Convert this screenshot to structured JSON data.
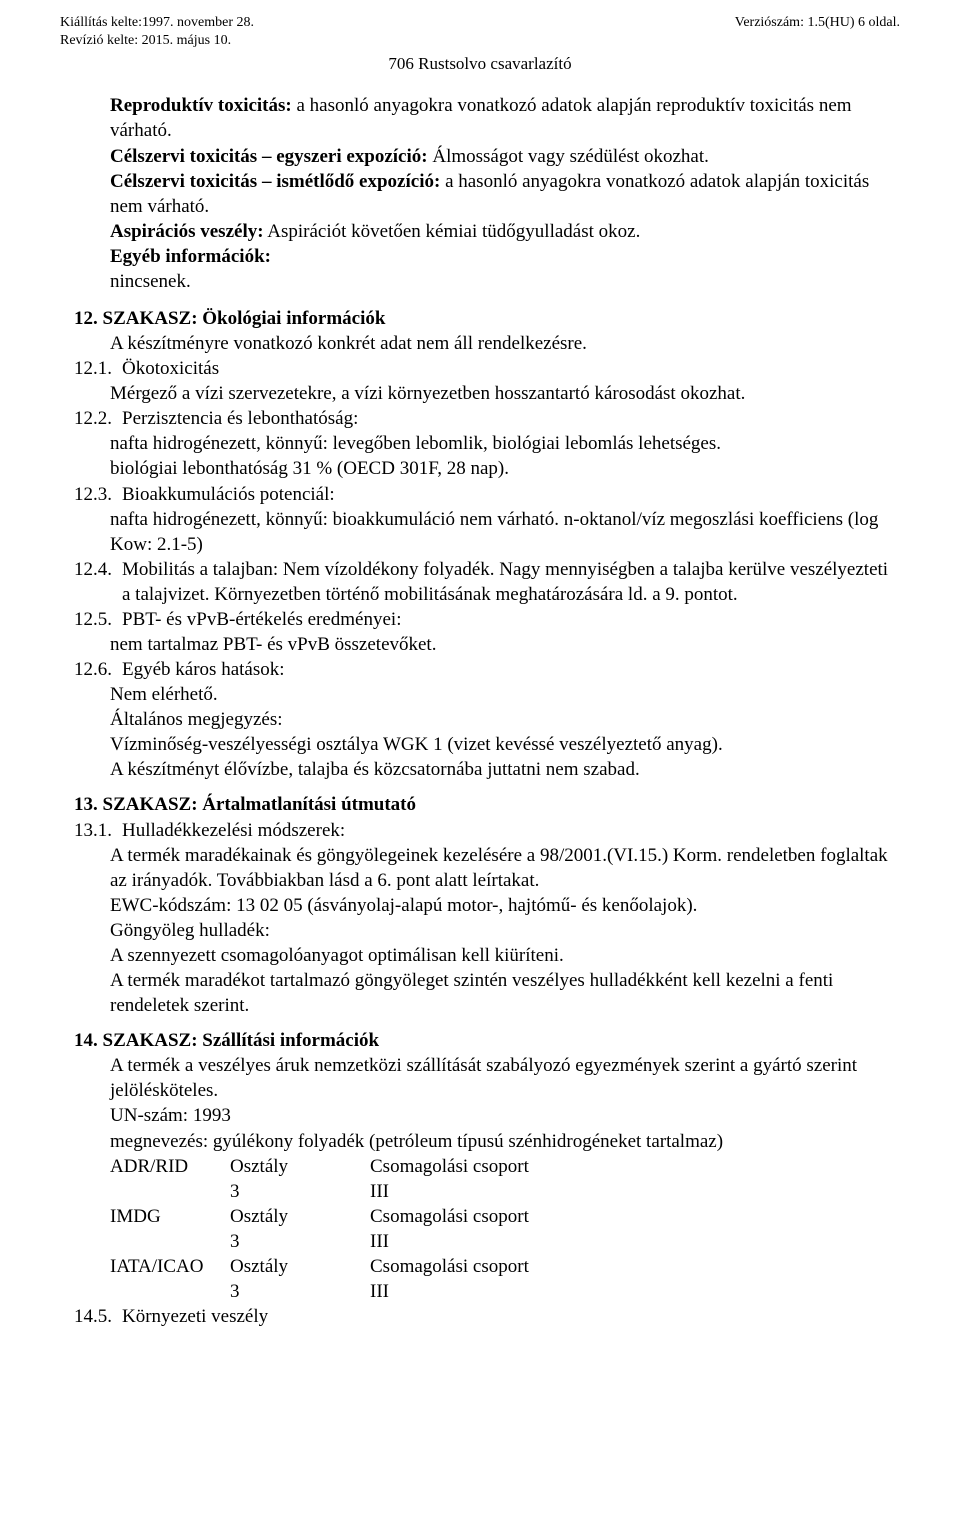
{
  "header": {
    "left1": "Kiállítás kelte:1997. november 28.",
    "left2": "Revízió kelte: 2015. május 10.",
    "right": "Verziószám: 1.5(HU) 6 oldal.",
    "title": "706 Rustsolvo csavarlazító"
  },
  "intro": {
    "l1a": "Reproduktív toxicitás:",
    "l1b": " a hasonló anyagokra vonatkozó adatok alapján reproduktív toxicitás nem várható.",
    "l2a": "Célszervi toxicitás – egyszeri expozíció:",
    "l2b": " Álmosságot vagy szédülést okozhat.",
    "l3a": "Célszervi toxicitás – ismétlődő expozíció:",
    "l3b": " a hasonló anyagokra vonatkozó adatok alapján toxicitás nem várható.",
    "l4a": "Aspirációs veszély:",
    "l4b": " Aspirációt követően kémiai tüdőgyulladást okoz.",
    "l5": "Egyéb információk:",
    "l6": "nincsenek."
  },
  "s12": {
    "heading": "12. SZAKASZ: Ökológiai információk",
    "sub": "A készítményre vonatkozó konkrét adat nem áll rendelkezésre.",
    "n1": "12.1.",
    "t1a": "Ökotoxicitás",
    "t1b": "Mérgező a vízi szervezetekre, a vízi környezetben hosszantartó károsodást okozhat.",
    "n2": "12.2.",
    "t2a": "Perzisztencia és lebonthatóság:",
    "t2b": "nafta hidrogénezett, könnyű: levegőben lebomlik, biológiai lebomlás lehetséges.",
    "t2c": "biológiai lebonthatóság 31 % (OECD 301F, 28 nap).",
    "n3": "12.3.",
    "t3a": "Bioakkumulációs potenciál:",
    "t3b": "nafta hidrogénezett, könnyű: bioakkumuláció nem várható. n-oktanol/víz megoszlási koefficiens (log Kow: 2.1-5)",
    "n4": "12.4.",
    "t4a": "Mobilitás a talajban: Nem vízoldékony folyadék. Nagy mennyiségben a talajba kerülve veszélyezteti a talajvizet. Környezetben történő mobilitásának meghatározására ld. a 9. pontot.",
    "n5": "12.5.",
    "t5a": "PBT- és vPvB-értékelés eredményei:",
    "t5b": "nem tartalmaz PBT- és vPvB összetevőket.",
    "n6": "12.6.",
    "t6a": "Egyéb káros hatások:",
    "t6b": "Nem elérhető.",
    "t6c": "Általános megjegyzés:",
    "t6d": "Vízminőség-veszélyességi osztálya WGK 1 (vizet kevéssé veszélyeztető anyag).",
    "t6e": "A készítményt élővízbe, talajba és közcsatornába juttatni nem szabad."
  },
  "s13": {
    "heading": "13. SZAKASZ: Ártalmatlanítási útmutató",
    "n1": "13.1.",
    "t1a": "Hulladékkezelési módszerek:",
    "t1b": "A termék maradékainak és göngyölegeinek kezelésére a 98/2001.(VI.15.) Korm. rendeletben foglaltak az irányadók. Továbbiakban lásd a 6. pont alatt leírtakat.",
    "t1c": "EWC-kódszám: 13 02 05 (ásványolaj-alapú motor-, hajtómű- és kenőolajok).",
    "t1d": "Göngyöleg hulladék:",
    "t1e": "A szennyezett csomagolóanyagot optimálisan kell kiüríteni.",
    "t1f": "A termék maradékot tartalmazó göngyöleget szintén veszélyes hulladékként kell kezelni a fenti rendeletek szerint."
  },
  "s14": {
    "heading": "14. SZAKASZ: Szállítási információk",
    "l1": "A termék a veszélyes áruk nemzetközi szállítását szabályozó egyezmények szerint a gyártó szerint jelölésköteles.",
    "l2": "UN-szám: 1993",
    "l3": "megnevezés: gyúlékony folyadék (petróleum típusú szénhidrogéneket tartalmaz)",
    "table": {
      "r1c1": "ADR/RID",
      "r1c2": "Osztály",
      "r1c3": "Csomagolási csoport",
      "r2c2": "3",
      "r2c3": "III",
      "r3c1": "IMDG",
      "r3c2": "Osztály",
      "r3c3": "Csomagolási csoport",
      "r4c2": "3",
      "r4c3": "III",
      "r5c1": "IATA/ICAO",
      "r5c2": "Osztály",
      "r5c3": "Csomagolási csoport",
      "r6c2": "3",
      "r6c3": "III"
    },
    "n5": "14.5.",
    "t5": "Környezeti veszély"
  }
}
